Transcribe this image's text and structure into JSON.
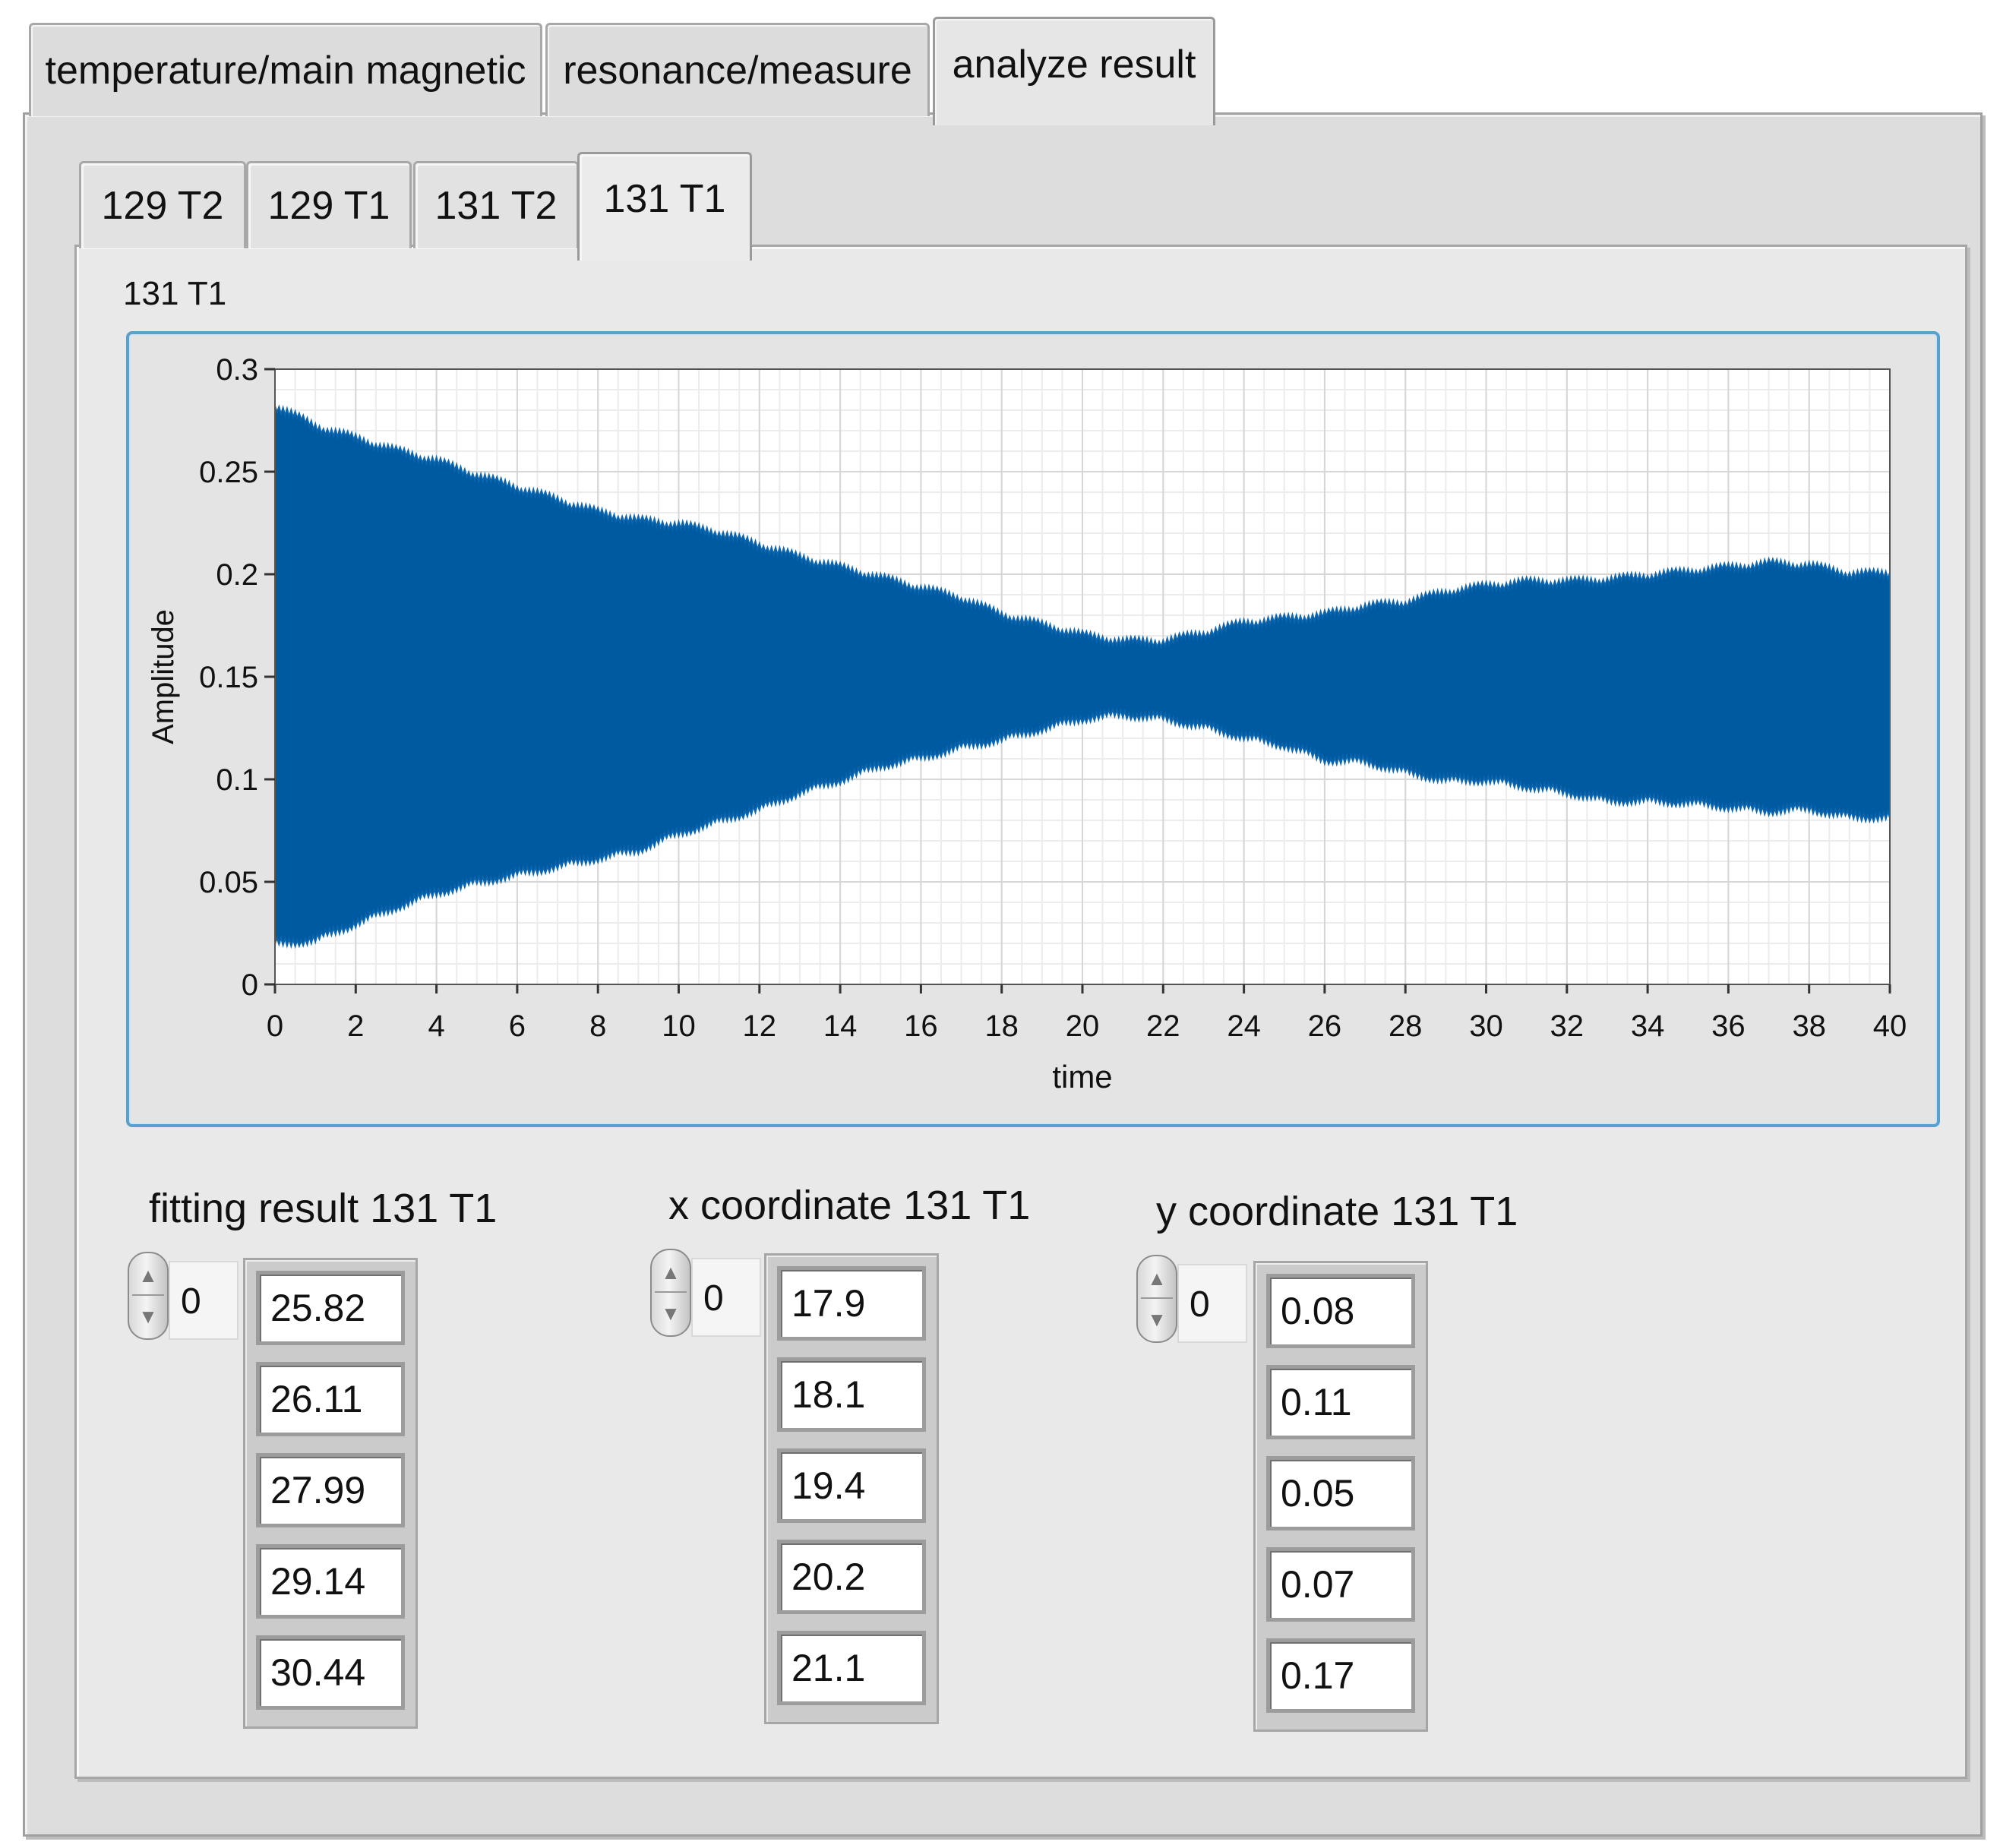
{
  "outer_tabs": [
    {
      "label": "temperature/main magnetic"
    },
    {
      "label": "resonance/measure"
    },
    {
      "label": "analyze result",
      "active": true
    }
  ],
  "inner_tabs": [
    {
      "label": "129 T2"
    },
    {
      "label": "129 T1"
    },
    {
      "label": "131 T2"
    },
    {
      "label": "131 T1",
      "active": true
    }
  ],
  "graph": {
    "label": "131 T1"
  },
  "chart_data": {
    "type": "area",
    "title": "131 T1",
    "xlabel": "time",
    "ylabel": "Amplitude",
    "xlim": [
      0,
      40
    ],
    "ylim": [
      0,
      0.3
    ],
    "x_ticks": [
      "0",
      "2",
      "4",
      "6",
      "8",
      "10",
      "12",
      "14",
      "16",
      "18",
      "20",
      "22",
      "24",
      "26",
      "28",
      "30",
      "32",
      "34",
      "36",
      "38",
      "40"
    ],
    "y_ticks": [
      "0",
      "0.05",
      "0.1",
      "0.15",
      "0.2",
      "0.25",
      "0.3"
    ],
    "grid": true,
    "series": [
      {
        "color": "#005aa0",
        "x": [
          0,
          1,
          2,
          3,
          4,
          5,
          6,
          7,
          8,
          9,
          10,
          11,
          12,
          13,
          14,
          15,
          16,
          17,
          18,
          19,
          20,
          21,
          22,
          23,
          24,
          25,
          26,
          27,
          28,
          29,
          30,
          31,
          32,
          33,
          34,
          35,
          36,
          37,
          38,
          39,
          40
        ],
        "upper": [
          0.282,
          0.272,
          0.266,
          0.26,
          0.255,
          0.248,
          0.242,
          0.236,
          0.23,
          0.226,
          0.224,
          0.22,
          0.214,
          0.208,
          0.203,
          0.198,
          0.193,
          0.188,
          0.18,
          0.175,
          0.17,
          0.167,
          0.167,
          0.171,
          0.176,
          0.178,
          0.18,
          0.184,
          0.186,
          0.191,
          0.194,
          0.196,
          0.196,
          0.197,
          0.199,
          0.201,
          0.203,
          0.205,
          0.204,
          0.2,
          0.2
        ],
        "lower": [
          0.02,
          0.022,
          0.03,
          0.038,
          0.045,
          0.05,
          0.054,
          0.058,
          0.062,
          0.066,
          0.074,
          0.08,
          0.086,
          0.094,
          0.1,
          0.107,
          0.111,
          0.116,
          0.12,
          0.125,
          0.13,
          0.132,
          0.13,
          0.126,
          0.121,
          0.117,
          0.11,
          0.109,
          0.104,
          0.1,
          0.1,
          0.097,
          0.094,
          0.09,
          0.09,
          0.089,
          0.087,
          0.085,
          0.086,
          0.082,
          0.082
        ]
      }
    ]
  },
  "arrays": [
    {
      "label": "fitting result 131 T1",
      "index": "0",
      "values": [
        "25.82",
        "26.11",
        "27.99",
        "29.14",
        "30.44"
      ]
    },
    {
      "label": "x coordinate 131 T1",
      "index": "0",
      "values": [
        "17.9",
        "18.1",
        "19.4",
        "20.2",
        "21.1"
      ]
    },
    {
      "label": "y coordinate 131 T1",
      "index": "0",
      "values": [
        "0.08",
        "0.11",
        "0.05",
        "0.07",
        "0.17"
      ]
    }
  ]
}
